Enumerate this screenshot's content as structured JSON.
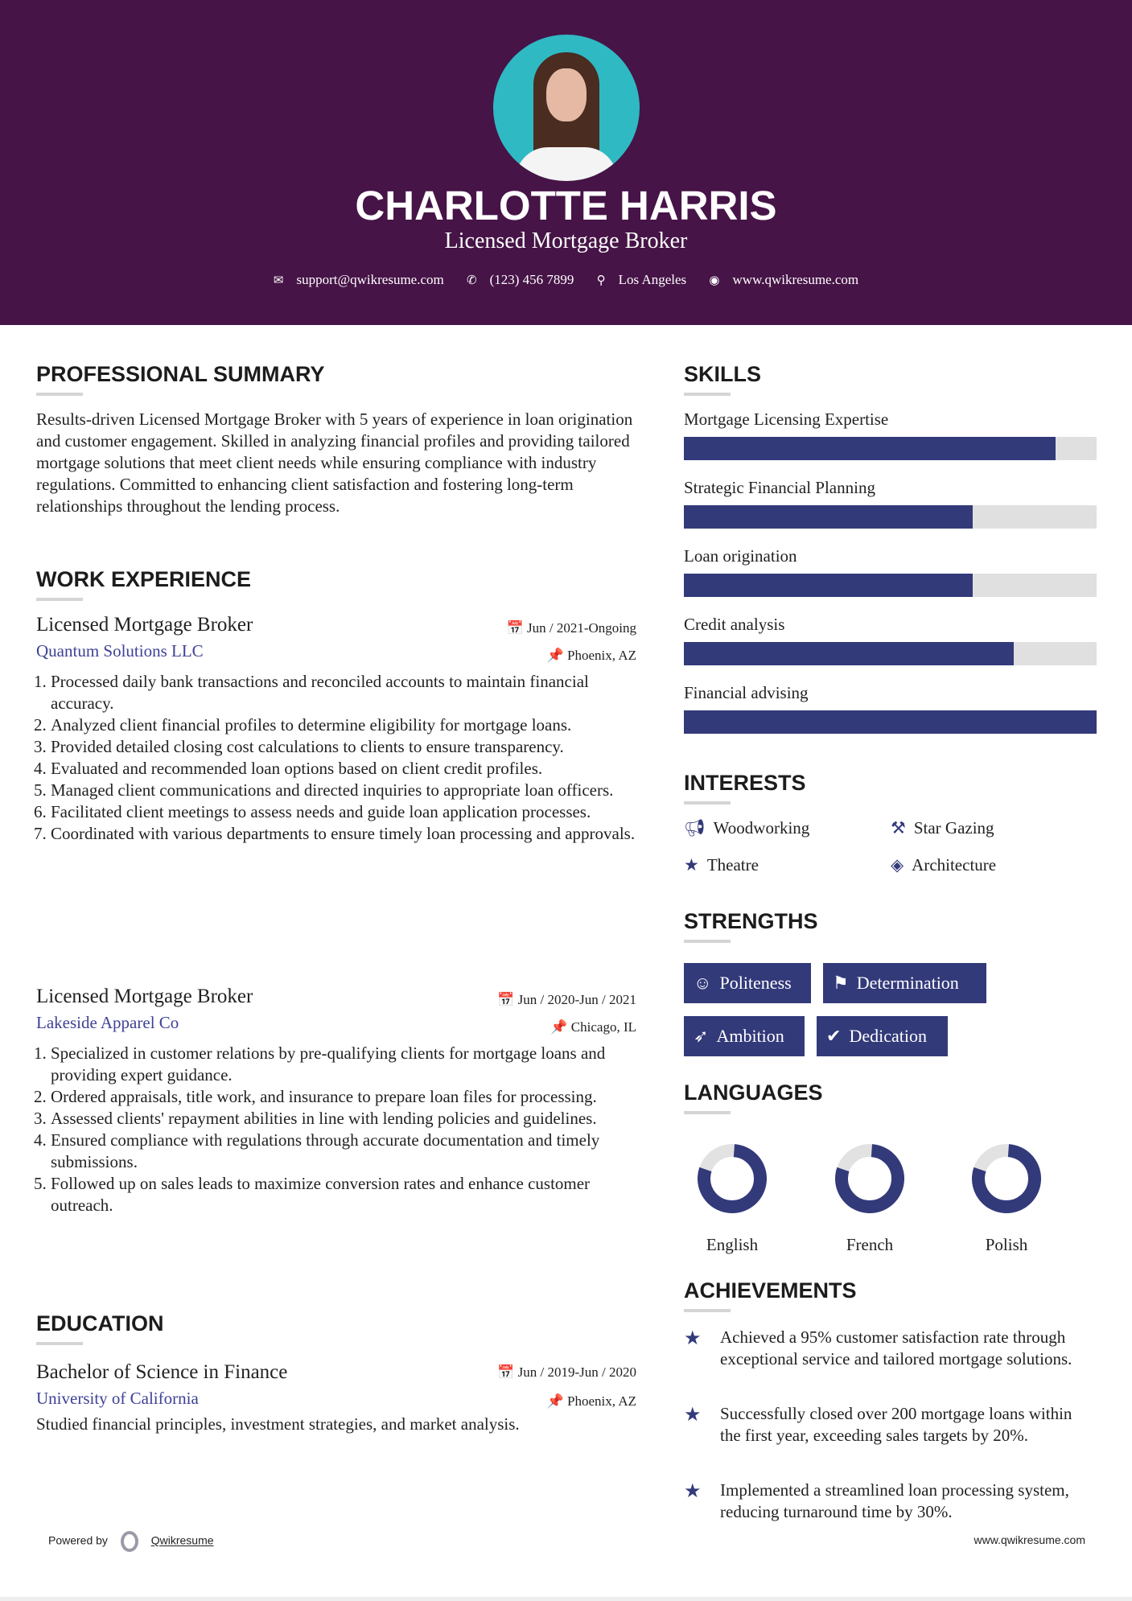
{
  "header": {
    "name": "CHARLOTTE HARRIS",
    "title": "Licensed Mortgage Broker",
    "email": "support@qwikresume.com",
    "phone": "(123) 456 7899",
    "location": "Los Angeles",
    "website": "www.qwikresume.com"
  },
  "summary": {
    "heading": "PROFESSIONAL SUMMARY",
    "text": "Results-driven Licensed Mortgage Broker with 5 years of experience in loan origination and customer engagement. Skilled in analyzing financial profiles and providing tailored mortgage solutions that meet client needs while ensuring compliance with industry regulations. Committed to enhancing client satisfaction and fostering long-term relationships throughout the lending process."
  },
  "experience": {
    "heading": "WORK EXPERIENCE",
    "jobs": [
      {
        "title": "Licensed Mortgage Broker",
        "company": "Quantum Solutions LLC",
        "dates": "Jun / 2021-Ongoing",
        "location": "Phoenix, AZ",
        "bullets": [
          "Processed daily bank transactions and reconciled accounts to maintain financial accuracy.",
          "Analyzed client financial profiles to determine eligibility for mortgage loans.",
          "Provided detailed closing cost calculations to clients to ensure transparency.",
          "Evaluated and recommended loan options based on client credit profiles.",
          "Managed client communications and directed inquiries to appropriate loan officers.",
          "Facilitated client meetings to assess needs and guide loan application processes.",
          "Coordinated with various departments to ensure timely loan processing and approvals."
        ]
      },
      {
        "title": "Licensed Mortgage Broker",
        "company": "Lakeside Apparel Co",
        "dates": "Jun / 2020-Jun / 2021",
        "location": "Chicago, IL",
        "bullets": [
          "Specialized in customer relations by pre-qualifying clients for mortgage loans and providing expert guidance.",
          "Ordered appraisals, title work, and insurance to prepare loan files for processing.",
          "Assessed clients' repayment abilities in line with lending policies and guidelines.",
          "Ensured compliance with regulations through accurate documentation and timely submissions.",
          "Followed up on sales leads to maximize conversion rates and enhance customer outreach."
        ]
      }
    ]
  },
  "education": {
    "heading": "EDUCATION",
    "degree": "Bachelor of Science in Finance",
    "school": "University of California",
    "dates": "Jun / 2019-Jun / 2020",
    "location": "Phoenix, AZ",
    "description": "Studied financial principles, investment strategies, and market analysis."
  },
  "skills": {
    "heading": "SKILLS",
    "items": [
      {
        "name": "Mortgage Licensing Expertise",
        "level": 0.9
      },
      {
        "name": "Strategic Financial Planning",
        "level": 0.7
      },
      {
        "name": "Loan origination",
        "level": 0.7
      },
      {
        "name": "Credit analysis",
        "level": 0.8
      },
      {
        "name": "Financial advising",
        "level": 1.0
      }
    ]
  },
  "interests": {
    "heading": "INTERESTS",
    "items": [
      {
        "label": "Woodworking",
        "icon": "bullhorn-icon"
      },
      {
        "label": "Star Gazing",
        "icon": "gavel-icon"
      },
      {
        "label": "Theatre",
        "icon": "star-icon"
      },
      {
        "label": "Architecture",
        "icon": "ticket-icon"
      }
    ]
  },
  "strengths": {
    "heading": "STRENGTHS",
    "items": [
      {
        "label": "Politeness",
        "icon": "smile-icon"
      },
      {
        "label": "Determination",
        "icon": "flag-icon"
      },
      {
        "label": "Ambition",
        "icon": "rocket-icon"
      },
      {
        "label": "Dedication",
        "icon": "check-circle-icon"
      }
    ]
  },
  "languages": {
    "heading": "LANGUAGES",
    "items": [
      {
        "name": "English",
        "level": 0.8
      },
      {
        "name": "French",
        "level": 0.8
      },
      {
        "name": "Polish",
        "level": 0.8
      }
    ]
  },
  "achievements": {
    "heading": "ACHIEVEMENTS",
    "items": [
      "Achieved a 95% customer satisfaction rate through exceptional service and tailored mortgage solutions.",
      "Successfully closed over 200 mortgage loans within the first year, exceeding sales targets by 20%.",
      "Implemented a streamlined loan processing system, reducing turnaround time by 30%."
    ]
  },
  "footer": {
    "powered": "Powered by",
    "brand": "Qwikresume",
    "url": "www.qwikresume.com"
  },
  "colors": {
    "header": "#461447",
    "accent": "#333a7a",
    "company": "#3e4196",
    "bar_bg": "#e0e0e0"
  }
}
